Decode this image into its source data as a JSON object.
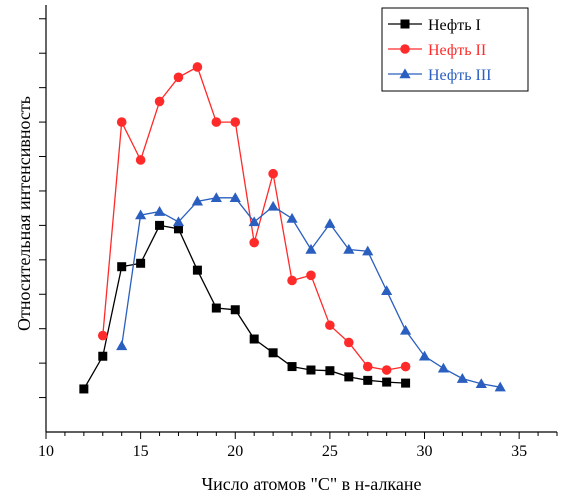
{
  "chart_data": {
    "type": "line",
    "xlabel": "Число атомов \"C\" в н-алкане",
    "ylabel": "Относительная интенсивность",
    "xlim": [
      10,
      37
    ],
    "ylim": [
      0,
      12.4
    ],
    "x_ticks": [
      10,
      15,
      20,
      25,
      30,
      35
    ],
    "y_ticks": [
      1,
      2,
      3,
      4,
      5,
      6,
      7,
      8,
      9,
      10,
      11,
      12
    ],
    "y_tick_labels_shown": false,
    "grid": false,
    "legend_position": "top-right",
    "series": [
      {
        "name": "Нефть I",
        "color": "#000000",
        "marker": "square",
        "x": [
          12,
          13,
          14,
          15,
          16,
          17,
          18,
          19,
          20,
          21,
          22,
          23,
          24,
          25,
          26,
          27,
          28,
          29
        ],
        "y": [
          1.25,
          2.2,
          4.8,
          4.9,
          6.0,
          5.9,
          4.7,
          3.6,
          3.55,
          2.7,
          2.3,
          1.9,
          1.8,
          1.78,
          1.6,
          1.5,
          1.45,
          1.42
        ]
      },
      {
        "name": "Нефть II",
        "color": "#ff2a2a",
        "marker": "circle",
        "x": [
          13,
          14,
          15,
          16,
          17,
          18,
          19,
          20,
          21,
          22,
          23,
          24,
          25,
          26,
          27,
          28,
          29
        ],
        "y": [
          2.8,
          9.0,
          7.9,
          9.6,
          10.3,
          10.6,
          9.0,
          9.0,
          5.5,
          7.5,
          4.4,
          4.55,
          3.1,
          2.6,
          1.9,
          1.8,
          1.9
        ]
      },
      {
        "name": "Нефть III",
        "color": "#2a5fbf",
        "marker": "triangle",
        "x": [
          14,
          15,
          16,
          17,
          18,
          19,
          20,
          21,
          22,
          23,
          24,
          25,
          26,
          27,
          28,
          29,
          30,
          31,
          32,
          33,
          34
        ],
        "y": [
          2.5,
          6.3,
          6.4,
          6.1,
          6.7,
          6.8,
          6.8,
          6.1,
          6.55,
          6.2,
          5.3,
          6.05,
          5.3,
          5.25,
          4.1,
          2.95,
          2.2,
          1.85,
          1.55,
          1.4,
          1.3
        ]
      }
    ]
  }
}
